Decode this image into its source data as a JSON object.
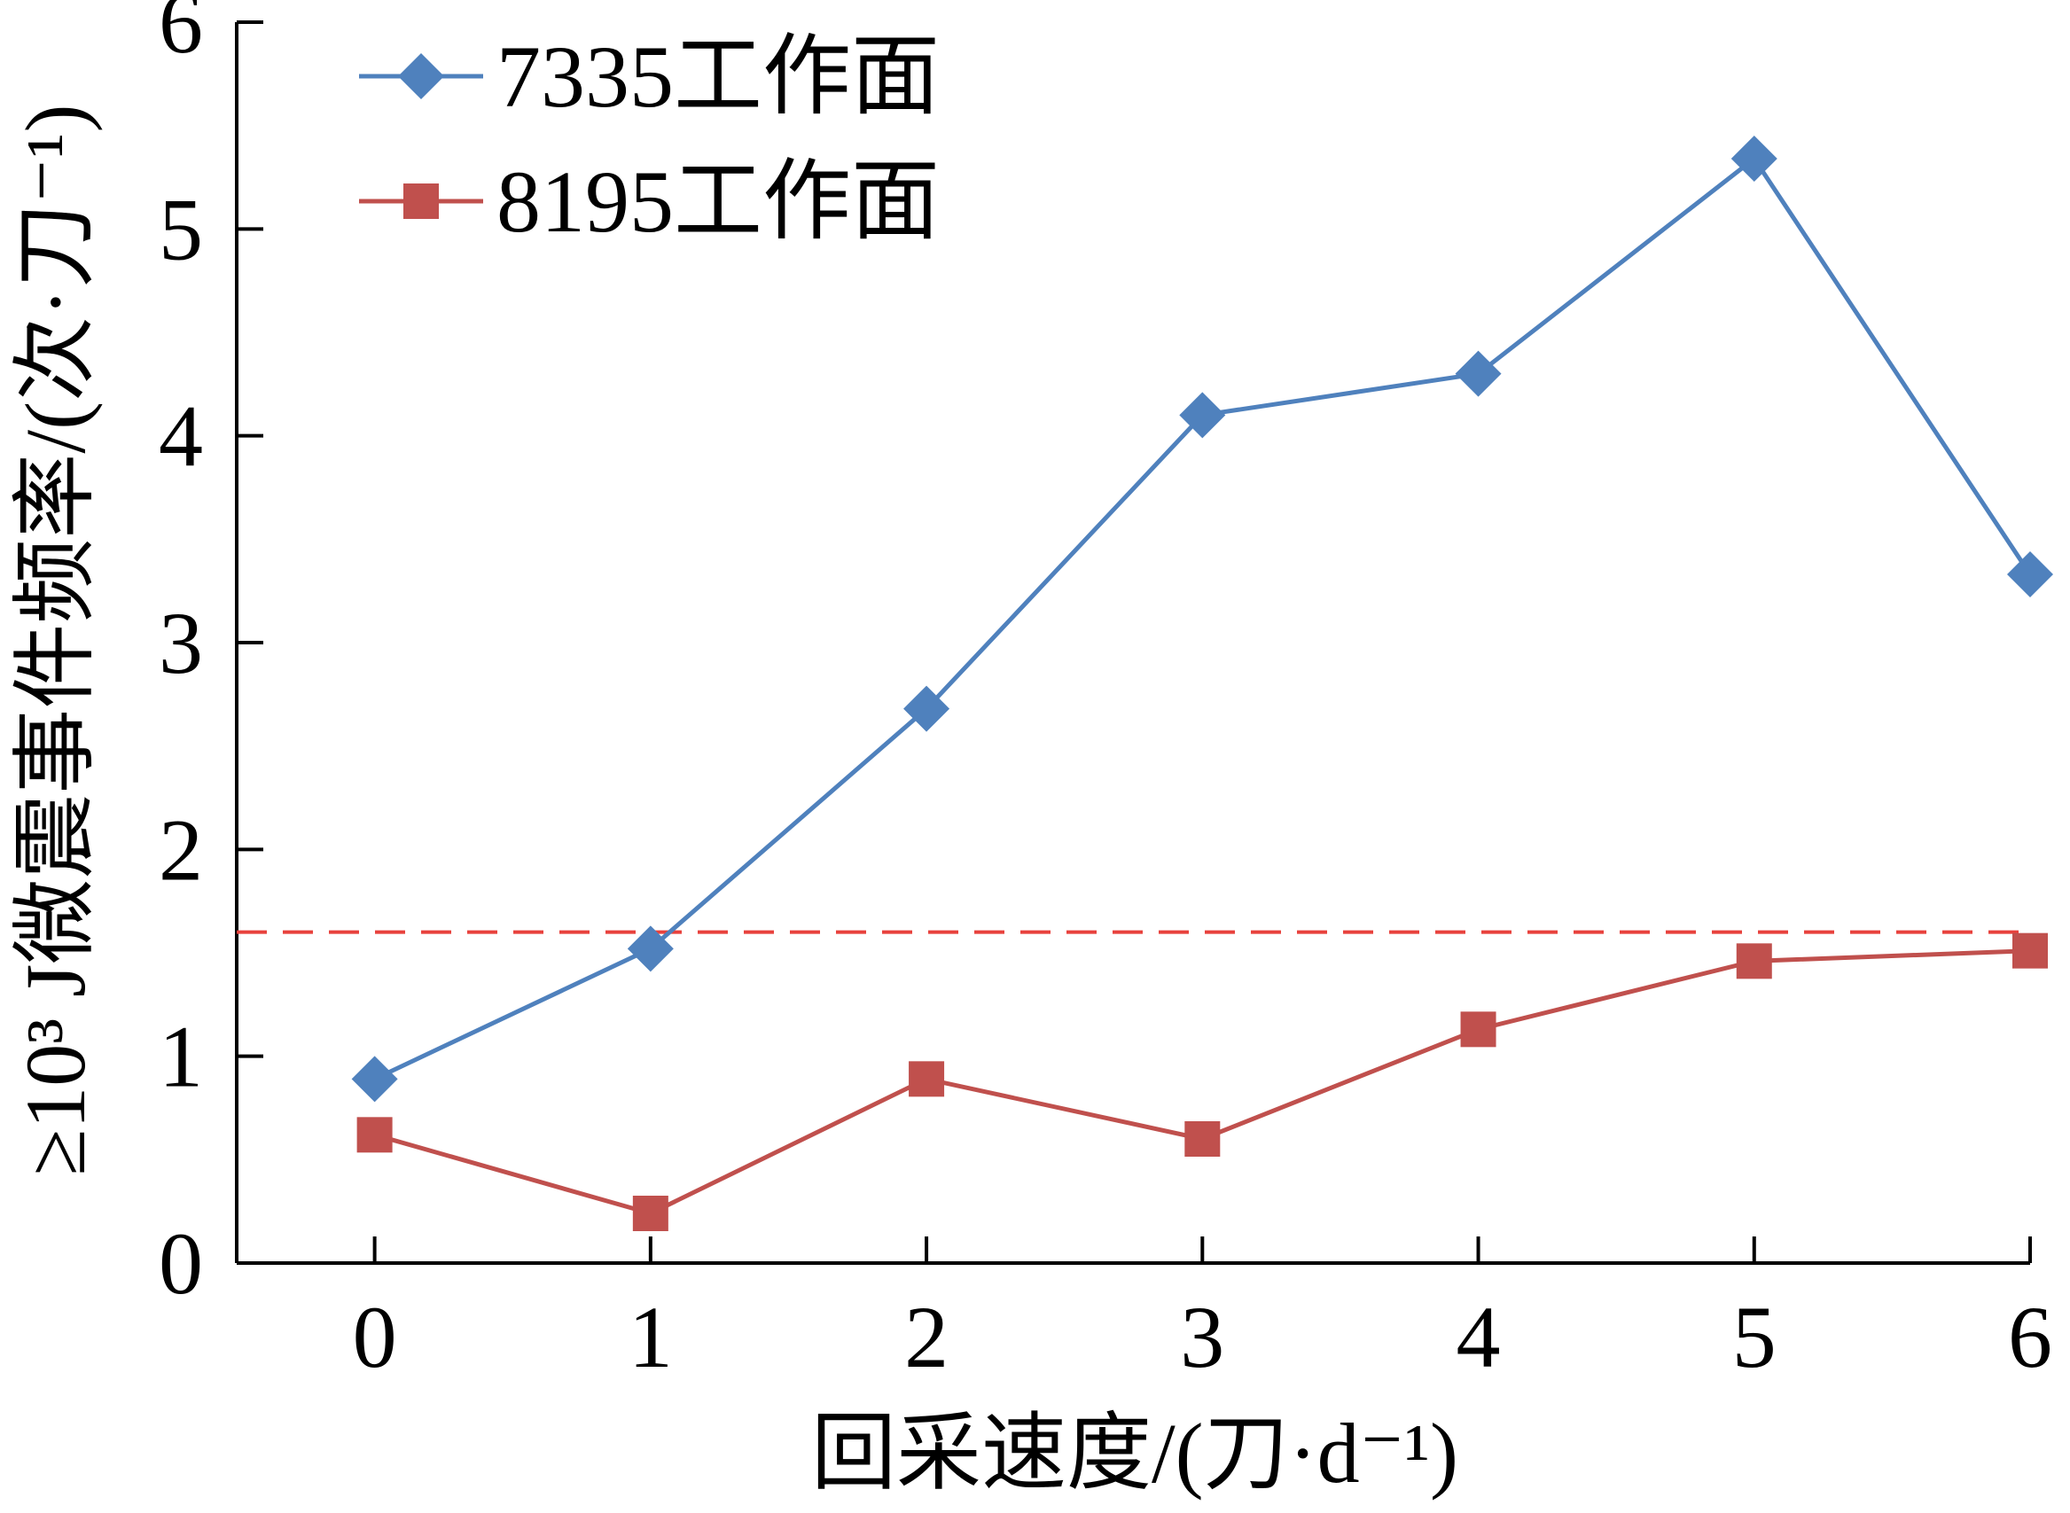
{
  "chart_data": {
    "type": "line",
    "xlabel": "回采速度/(刀·d⁻¹)",
    "ylabel": "≥10³ J微震事件频率/(次·刀⁻¹)",
    "xlim": [
      0,
      6
    ],
    "ylim": [
      0,
      6
    ],
    "x_ticks": [
      "0",
      "1",
      "2",
      "3",
      "4",
      "5",
      "6"
    ],
    "y_ticks": [
      "0",
      "1",
      "2",
      "3",
      "4",
      "5",
      "6"
    ],
    "grid": false,
    "legend_position": "top-left",
    "series": [
      {
        "name": "7335工作面",
        "color": "#4f81bd",
        "marker": "diamond",
        "x": [
          0,
          1,
          2,
          3,
          4,
          5,
          6
        ],
        "values": [
          0.89,
          1.52,
          2.68,
          4.1,
          4.3,
          5.34,
          3.33
        ]
      },
      {
        "name": "8195工作面",
        "color": "#c0504d",
        "marker": "square",
        "x": [
          0,
          1,
          2,
          3,
          4,
          5,
          6
        ],
        "values": [
          0.62,
          0.24,
          0.89,
          0.6,
          1.13,
          1.46,
          1.51
        ]
      }
    ],
    "reference_line": {
      "value": 1.6,
      "color": "#e8413c",
      "style": "dashed"
    }
  }
}
